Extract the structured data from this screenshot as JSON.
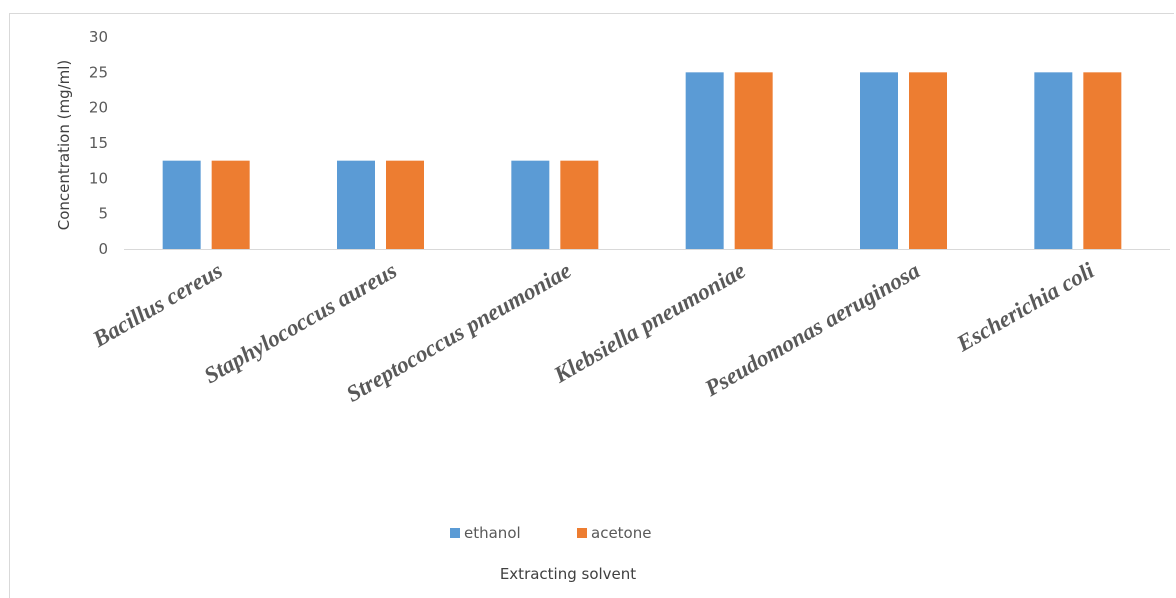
{
  "chart_data": {
    "type": "bar",
    "title": "",
    "xlabel": "Extracting solvent",
    "ylabel": "Concentration (mg/ml)",
    "ylim": [
      0,
      30
    ],
    "yticks": [
      "0",
      "5",
      "10",
      "15",
      "20",
      "25",
      "30"
    ],
    "grid": false,
    "legend_position": "bottom",
    "categories": [
      "Bacillus cereus",
      "Staphylococcus aureus",
      "Streptococcus pneumoniae",
      "Klebsiella pneumoniae",
      "Pseudomonas aeruginosa",
      "Escherichia coli"
    ],
    "series": [
      {
        "name": "ethanol",
        "color": "#5b9bd5",
        "values": [
          12.5,
          12.5,
          12.5,
          25,
          25,
          25
        ]
      },
      {
        "name": "acetone",
        "color": "#ed7d31",
        "values": [
          12.5,
          12.5,
          12.5,
          25,
          25,
          25
        ]
      }
    ]
  }
}
